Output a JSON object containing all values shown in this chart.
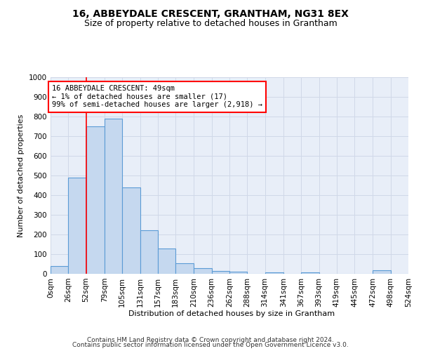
{
  "title": "16, ABBEYDALE CRESCENT, GRANTHAM, NG31 8EX",
  "subtitle": "Size of property relative to detached houses in Grantham",
  "xlabel": "Distribution of detached houses by size in Grantham",
  "ylabel": "Number of detached properties",
  "bin_edges": [
    0,
    26,
    52,
    79,
    105,
    131,
    157,
    183,
    210,
    236,
    262,
    288,
    314,
    341,
    367,
    393,
    419,
    445,
    472,
    498,
    524
  ],
  "bar_heights": [
    40,
    490,
    750,
    790,
    438,
    220,
    128,
    52,
    27,
    15,
    11,
    0,
    8,
    0,
    8,
    0,
    0,
    0,
    18,
    0
  ],
  "bar_color": "#c5d8ef",
  "bar_edge_color": "#5b9bd5",
  "vline_x": 52,
  "annotation_box_text": "16 ABBEYDALE CRESCENT: 49sqm\n← 1% of detached houses are smaller (17)\n99% of semi-detached houses are larger (2,918) →",
  "ylim": [
    0,
    1000
  ],
  "yticks": [
    0,
    100,
    200,
    300,
    400,
    500,
    600,
    700,
    800,
    900,
    1000
  ],
  "grid_color": "#d0d8e8",
  "bg_color": "#e8eef8",
  "footer_line1": "Contains HM Land Registry data © Crown copyright and database right 2024.",
  "footer_line2": "Contains public sector information licensed under the Open Government Licence v3.0.",
  "title_fontsize": 10,
  "subtitle_fontsize": 9,
  "axis_label_fontsize": 8,
  "tick_fontsize": 7.5,
  "annotation_fontsize": 7.5,
  "footer_fontsize": 6.5
}
